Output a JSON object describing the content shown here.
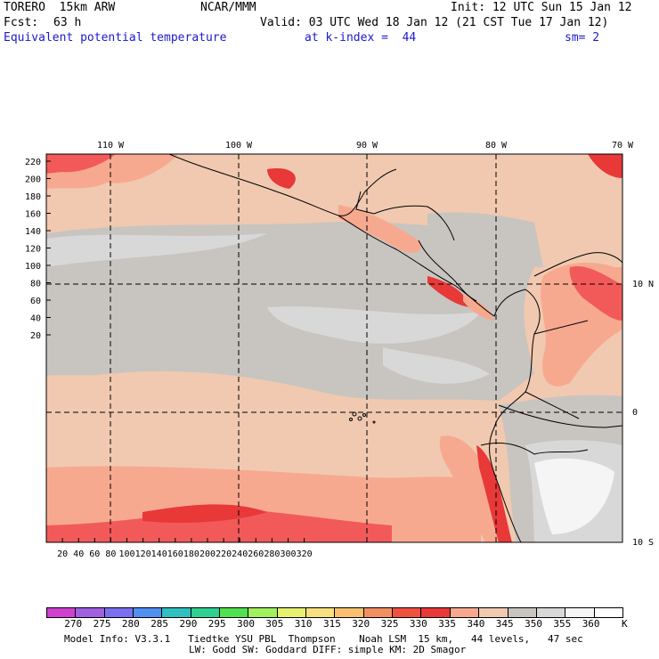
{
  "header": {
    "model": "TORERO  15km ARW",
    "org": "NCAR/MMM",
    "init": "Init: 12 UTC Sun 15 Jan 12",
    "fcst_label": "Fcst:",
    "fcst_value": "63 h",
    "valid": "Valid: 03 UTC Wed 18 Jan 12 (21 CST Tue 17 Jan 12)",
    "field": "Equivalent potential temperature",
    "level": "at k-index =  44",
    "smooth": "sm= 2"
  },
  "map": {
    "lon_labels": [
      "110 W",
      "100 W",
      "90 W",
      "80 W",
      "70 W"
    ],
    "lat_labels": [
      "10 N",
      "0",
      "10 S"
    ],
    "x_ticks": [
      "20",
      "40",
      "60",
      "80",
      "100",
      "120",
      "140",
      "160",
      "180",
      "200",
      "220",
      "240",
      "260",
      "280",
      "300",
      "320"
    ],
    "y_ticks": [
      "220",
      "200",
      "180",
      "160",
      "140",
      "120",
      "100",
      "80",
      "60",
      "40",
      "20"
    ],
    "colors": {
      "background_low": "#f0c9b0",
      "mid_gray": "#c8c4c0",
      "light_gray": "#d8d8d8",
      "warm": "#f7a990",
      "hot": "#f25a5a",
      "very_hot": "#e83838",
      "white": "#f5f5f5"
    }
  },
  "colorbar": {
    "unit": "K",
    "labels": [
      "270",
      "275",
      "280",
      "285",
      "290",
      "295",
      "300",
      "305",
      "310",
      "315",
      "320",
      "325",
      "330",
      "335",
      "340",
      "345",
      "350",
      "355",
      "360"
    ],
    "swatches": [
      "#d040d0",
      "#a060e0",
      "#7a70f0",
      "#5090f0",
      "#30c0c0",
      "#30d090",
      "#50e050",
      "#a0f060",
      "#e8f070",
      "#f8e080",
      "#f8c070",
      "#f09060",
      "#f05040",
      "#e83838",
      "#f7a990",
      "#f0c9b0",
      "#c8c4c0",
      "#d8d8d8",
      "#f5f5f5"
    ]
  },
  "footer": {
    "line1": "Model Info: V3.3.1   Tiedtke YSU PBL  Thompson    Noah LSM  15 km,   44 levels,   47 sec",
    "line2": "LW: Godd SW: Goddard DIFF: simple KM: 2D Smagor"
  }
}
